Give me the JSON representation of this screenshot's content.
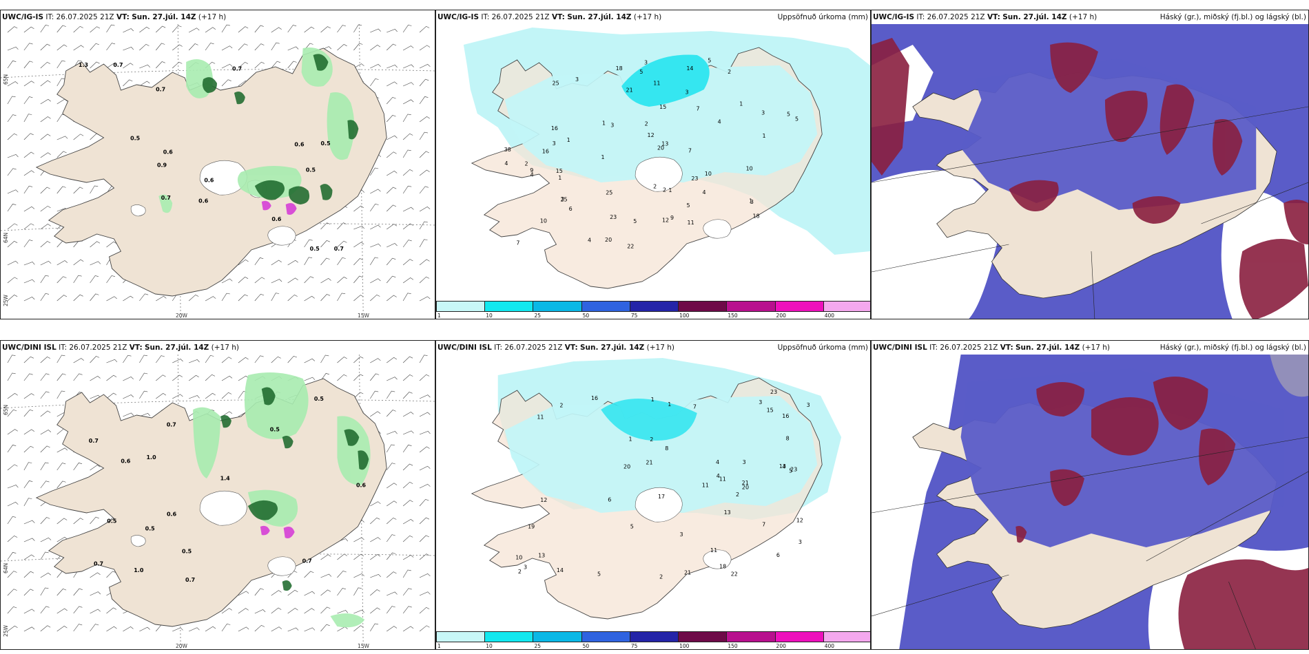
{
  "colors": {
    "land": "#efe3d4",
    "sea": "#ffffff",
    "precip_light": "#c2f5f7",
    "precip_mid": "#35e6f0",
    "hi_cloud": "#5a5cc8",
    "mid_cloud": "#8a1f3f",
    "green_dark": "#1f6b2e",
    "green_light": "#a8ecb0",
    "magenta": "#d84fd6"
  },
  "panels": [
    {
      "model": "UWC/IG-IS",
      "it_label": "IT:",
      "it_value": "26.07.2025 21Z",
      "vt_label": "VT:",
      "vt_value": "Sun. 27.júl. 14Z",
      "lead": "(+17 h)",
      "title": ""
    },
    {
      "model": "UWC/IG-IS",
      "it_label": "IT:",
      "it_value": "26.07.2025 21Z",
      "vt_label": "VT:",
      "vt_value": "Sun. 27.júl. 14Z",
      "lead": "(+17 h)",
      "title": "Uppsöfnuð úrkoma (mm)"
    },
    {
      "model": "UWC/IG-IS",
      "it_label": "IT:",
      "it_value": "26.07.2025 21Z",
      "vt_label": "VT:",
      "vt_value": "Sun. 27.júl. 14Z",
      "lead": "(+17 h)",
      "title": "Háský (gr.), miðský (fj.bl.) og lágský (bl.)"
    },
    {
      "model": "UWC/DINI ISL",
      "it_label": "IT:",
      "it_value": "26.07.2025 21Z",
      "vt_label": "VT:",
      "vt_value": "Sun. 27.júl. 14Z",
      "lead": "(+17 h)",
      "title": ""
    },
    {
      "model": "UWC/DINI ISL",
      "it_label": "IT:",
      "it_value": "26.07.2025 21Z",
      "vt_label": "VT:",
      "vt_value": "Sun. 27.júl. 14Z",
      "lead": "(+17 h)",
      "title": "Uppsöfnuð úrkoma (mm)"
    },
    {
      "model": "UWC/DINI ISL",
      "it_label": "IT:",
      "it_value": "26.07.2025 21Z",
      "vt_label": "VT:",
      "vt_value": "Sun. 27.júl. 14Z",
      "lead": "(+17 h)",
      "title": "Háský (gr.), miðský (fj.bl.) og lágský (bl.)"
    }
  ],
  "grid_labels": {
    "lat_top": "65N",
    "lat_bottom": "64N",
    "lon_left": "25W",
    "lon_mid": "20W",
    "lon_right": "15W"
  },
  "colorbar": {
    "ticks": [
      "1",
      "10",
      "25",
      "50",
      "75",
      "100",
      "150",
      "200",
      "400"
    ],
    "colors": [
      "#c8f7f7",
      "#12e8ef",
      "#0ab8e6",
      "#2f63e0",
      "#2424a8",
      "#6e0a48",
      "#b8108e",
      "#ee10bc",
      "#f4a8ee"
    ]
  },
  "precip_ig": [
    "10",
    "2",
    "3",
    "1",
    "2",
    "1",
    "1",
    "3",
    "3",
    "4",
    "2",
    "3",
    "4",
    "20",
    "22",
    "18",
    "18",
    "38",
    "25",
    "20",
    "11",
    "5",
    "21",
    "13",
    "12",
    "23",
    "9",
    "14",
    "15",
    "10",
    "16",
    "6",
    "9",
    "2",
    "3",
    "4",
    "5",
    "7",
    "7",
    "10",
    "5",
    "11",
    "5",
    "15",
    "4",
    "3",
    "23",
    "12",
    "25",
    "5",
    "3",
    "4",
    "2",
    "1",
    "1",
    "1",
    "1",
    "1",
    "25",
    "16",
    "7",
    "5",
    "3"
  ],
  "precip_dini": [
    "2",
    "3",
    "1",
    "2",
    "3",
    "2",
    "4",
    "3",
    "4",
    "7",
    "3",
    "5",
    "23",
    "23",
    "21",
    "21",
    "20",
    "19",
    "11",
    "16",
    "12",
    "13",
    "12",
    "10",
    "20",
    "13",
    "14",
    "11",
    "8",
    "15",
    "7",
    "6",
    "5",
    "4",
    "3",
    "2",
    "1",
    "21",
    "17",
    "18",
    "22",
    "11",
    "8",
    "13",
    "11",
    "6",
    "5",
    "3",
    "1",
    "2",
    "16"
  ],
  "green_ig": [
    "0.6",
    "0.5",
    "0.7",
    "0.5",
    "0.7",
    "0.7",
    "0.6",
    "0.9",
    "0.7",
    "0.6",
    "0.5",
    "0.7",
    "1.3",
    "0.5",
    "0.6",
    "0.6"
  ],
  "green_dini": [
    "0.5",
    "0.5",
    "0.7",
    "0.7",
    "0.6",
    "0.5",
    "0.6",
    "0.7",
    "0.5",
    "0.5",
    "0.6",
    "0.7",
    "1.0",
    "1.0",
    "1.4",
    "0.7"
  ]
}
